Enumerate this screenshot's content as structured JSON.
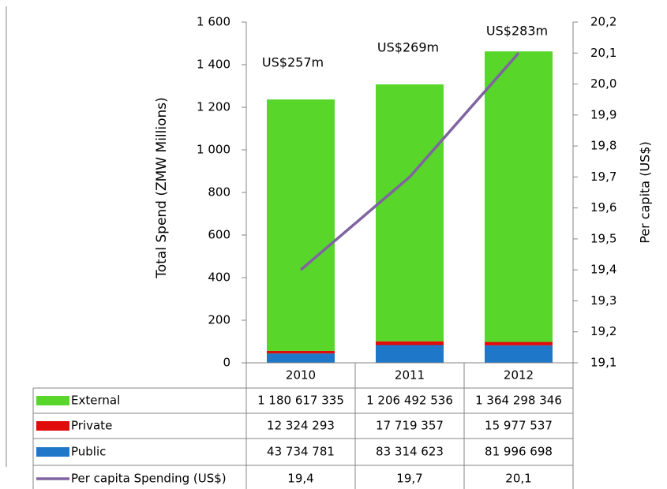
{
  "chart_data": {
    "type": "bar",
    "stacked": true,
    "grid": false,
    "categories": [
      "2010",
      "2011",
      "2012"
    ],
    "ylabel": "Total Spend (ZMW Millions)",
    "y2label": "Per capita (US$)",
    "ylim": [
      0,
      1600
    ],
    "yticks": [
      0,
      200,
      400,
      600,
      800,
      {
        "value": 1000,
        "label": "1 000"
      },
      {
        "value": 1200,
        "label": "1 200"
      },
      {
        "value": 1400,
        "label": "1 400"
      },
      {
        "value": 1600,
        "label": "1 600"
      }
    ],
    "y2lim": [
      19.1,
      20.2
    ],
    "y2ticks": [
      {
        "value": 19.1,
        "label": "19,1"
      },
      {
        "value": 19.2,
        "label": "19,2"
      },
      {
        "value": 19.3,
        "label": "19,3"
      },
      {
        "value": 19.4,
        "label": "19,4"
      },
      {
        "value": 19.5,
        "label": "19,5"
      },
      {
        "value": 19.6,
        "label": "19,6"
      },
      {
        "value": 19.7,
        "label": "19,7"
      },
      {
        "value": 19.8,
        "label": "19,8"
      },
      {
        "value": 19.9,
        "label": "19,9"
      },
      {
        "value": 20.0,
        "label": "20,0"
      },
      {
        "value": 20.1,
        "label": "20,1"
      },
      {
        "value": 20.2,
        "label": "20,2"
      }
    ],
    "annotations": [
      "US$257m",
      "US$269m",
      "US$283m"
    ],
    "series": [
      {
        "name": "External",
        "type": "bar",
        "color": "#58d62a",
        "values": [
          1180.617335,
          1206.492536,
          1364.298346
        ],
        "value_labels": [
          "1 180 617 335",
          "1 206 492 536",
          "1 364 298 346"
        ]
      },
      {
        "name": "Private",
        "type": "bar",
        "color": "#e00b0b",
        "values": [
          12.324293,
          17.719357,
          15.977537
        ],
        "value_labels": [
          "12 324 293",
          "17 719 357",
          "15 977 537"
        ]
      },
      {
        "name": "Public",
        "type": "bar",
        "color": "#1f77c9",
        "values": [
          43.734781,
          83.314623,
          81.996698
        ],
        "value_labels": [
          "43 734 781",
          "83 314 623",
          "81 996 698"
        ]
      },
      {
        "name": "Per capita Spending (US$)",
        "type": "line",
        "axis": "y2",
        "color": "#8064a2",
        "values": [
          19.4,
          19.7,
          20.1
        ],
        "value_labels": [
          "19,4",
          "19,7",
          "20,1"
        ]
      }
    ]
  }
}
